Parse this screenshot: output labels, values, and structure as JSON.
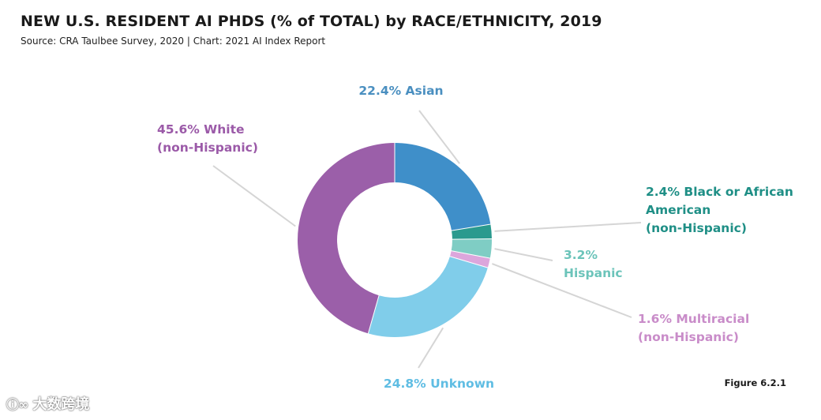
{
  "header": {
    "title": "NEW U.S. RESIDENT AI PHDS (% of TOTAL) by RACE/ETHNICITY, 2019",
    "subtitle": "Source: CRA Taulbee Survey, 2020 | Chart: 2021 AI Index Report"
  },
  "figure_label": "Figure 6.2.1",
  "watermark": {
    "logo": "ⓘ∞",
    "text": "大数跨境"
  },
  "chart_data": {
    "type": "pie",
    "donut": true,
    "title": "NEW U.S. RESIDENT AI PHDS (% of TOTAL) by RACE/ETHNICITY, 2019",
    "unit": "%",
    "slices": [
      {
        "name": "Asian",
        "value": 22.4,
        "color": "#3f8fc9",
        "label_lines": [
          "22.4% Asian"
        ],
        "label_color": "#4a8fc0"
      },
      {
        "name": "Black or African American (non-Hispanic)",
        "value": 2.4,
        "color": "#2a9a8e",
        "label_lines": [
          "2.4% Black or African",
          "American",
          "(non-Hispanic)"
        ],
        "label_color": "#1f8f86"
      },
      {
        "name": "Hispanic",
        "value": 3.2,
        "color": "#7fcdc4",
        "label_lines": [
          "3.2%",
          "Hispanic"
        ],
        "label_color": "#6cc4ba"
      },
      {
        "name": "Multiracial (non-Hispanic)",
        "value": 1.6,
        "color": "#dca6dc",
        "label_lines": [
          "1.6% Multiracial",
          "(non-Hispanic)"
        ],
        "label_color": "#c98cc9"
      },
      {
        "name": "Unknown",
        "value": 24.8,
        "color": "#80cdea",
        "label_lines": [
          "24.8% Unknown"
        ],
        "label_color": "#5fbde3"
      },
      {
        "name": "White (non-Hispanic)",
        "value": 45.6,
        "color": "#9b5fa9",
        "label_lines": [
          "45.6% White",
          "(non-Hispanic)"
        ],
        "label_color": "#9b5aa8"
      }
    ]
  }
}
